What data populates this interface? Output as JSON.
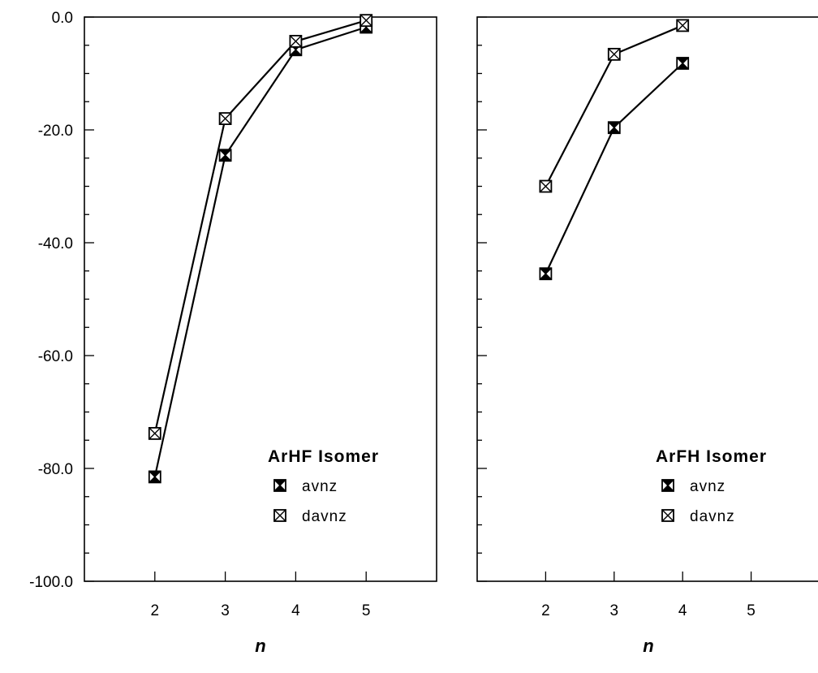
{
  "chart_data": [
    {
      "type": "line",
      "title": "",
      "xlabel": "n",
      "ylabel": "",
      "xlim": [
        1,
        6
      ],
      "ylim": [
        -100,
        0
      ],
      "x_ticks": [
        "2",
        "3",
        "4",
        "5"
      ],
      "y_ticks": [
        "0.0",
        "-20.0",
        "-40.0",
        "-60.0",
        "-80.0",
        "-100.0"
      ],
      "legend_title": "ArHF Isomer",
      "legend_position": "bottom-right",
      "series": [
        {
          "name": "avnz",
          "marker": "filled-x-square",
          "x": [
            2,
            3,
            4,
            5
          ],
          "values": [
            -81.5,
            -24.5,
            -5.8,
            -1.8
          ]
        },
        {
          "name": "davnz",
          "marker": "open-x-square",
          "x": [
            2,
            3,
            4,
            5
          ],
          "values": [
            -73.8,
            -18.0,
            -4.3,
            -0.6
          ]
        }
      ]
    },
    {
      "type": "line",
      "title": "",
      "xlabel": "n",
      "ylabel": "",
      "xlim": [
        1,
        6
      ],
      "ylim": [
        -100,
        0
      ],
      "x_ticks": [
        "2",
        "3",
        "4",
        "5"
      ],
      "legend_title": "ArFH Isomer",
      "legend_position": "bottom-right",
      "series": [
        {
          "name": "avnz",
          "marker": "filled-x-square",
          "x": [
            2,
            3,
            4
          ],
          "values": [
            -45.5,
            -19.6,
            -8.2
          ]
        },
        {
          "name": "davnz",
          "marker": "open-x-square",
          "x": [
            2,
            3,
            4
          ],
          "values": [
            -30.0,
            -6.6,
            -1.5
          ]
        }
      ]
    }
  ]
}
